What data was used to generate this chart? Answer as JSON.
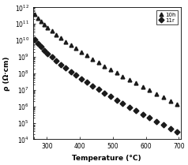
{
  "title": "",
  "xlabel": "Temperature (°C)",
  "ylabel": "ρ (Ω·cm)",
  "xlim": [
    258,
    705
  ],
  "ylim_log": [
    4,
    12
  ],
  "x_ticks": [
    260,
    300,
    400,
    500,
    600,
    700
  ],
  "x_tick_labels": [
    "",
    "300",
    "400",
    "500",
    "600",
    "700"
  ],
  "series1_label": "10h",
  "series2_label": "11r",
  "series1_marker": "^",
  "series2_marker": "D",
  "series1_color": "#1a1a1a",
  "series2_color": "#1a1a1a",
  "series1_x": [
    262,
    272,
    282,
    292,
    302,
    315,
    328,
    342,
    357,
    372,
    388,
    404,
    421,
    438,
    456,
    474,
    492,
    511,
    530,
    550,
    570,
    590,
    611,
    632,
    653,
    674,
    695
  ],
  "series1_y": [
    380000000000.0,
    230000000000.0,
    150000000000.0,
    95000000000.0,
    62000000000.0,
    38000000000.0,
    23000000000.0,
    14000000000.0,
    8500000000.0,
    5200000000.0,
    3200000000.0,
    2000000000.0,
    1200000000.0,
    750000000.0,
    450000000.0,
    280000000.0,
    170000000.0,
    105000000.0,
    65000000.0,
    40000000.0,
    25000000.0,
    15000000.0,
    9500000.0,
    5800000.0,
    3500000.0,
    2200000.0,
    1400000.0
  ],
  "series2_x": [
    262,
    272,
    282,
    292,
    302,
    315,
    328,
    342,
    357,
    372,
    388,
    404,
    421,
    438,
    456,
    474,
    492,
    511,
    530,
    550,
    570,
    590,
    611,
    632,
    653,
    674,
    695
  ],
  "series2_y": [
    11000000000.0,
    6500000000.0,
    4000000000.0,
    2500000000.0,
    1600000000.0,
    950000000.0,
    580000000.0,
    350000000.0,
    210000000.0,
    130000000.0,
    78000000.0,
    48000000.0,
    29000000.0,
    17500000.0,
    10500000.0,
    6400000.0,
    3900000.0,
    2400000.0,
    1450000.0,
    880000.0,
    540000.0,
    330000.0,
    200000.0,
    120000.0,
    75000.0,
    46000.0,
    28000.0
  ],
  "marker_size": 3.5,
  "legend_fontsize": 5,
  "axis_fontsize": 6.5,
  "tick_fontsize": 5.5,
  "background_color": "#ffffff"
}
